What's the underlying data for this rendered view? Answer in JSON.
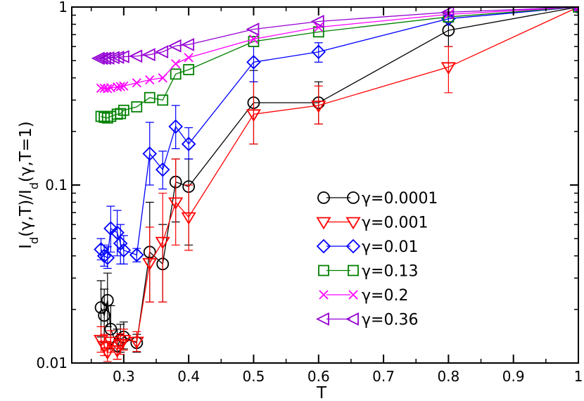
{
  "chart_data": {
    "type": "scatter",
    "title": "",
    "xlabel": "T",
    "ylabel": "I_d(γ,T)/I_d(γ,T=1)",
    "ylabel_parts": {
      "main": "I",
      "sub": "d",
      "mid": "(γ,T)/I",
      "sub2": "d",
      "tail": "(γ,T=1)"
    },
    "xlim": [
      0.22,
      1.0
    ],
    "ylim": [
      0.01,
      1
    ],
    "yscale": "log",
    "grid": false,
    "legend_position": "center-right",
    "xticks": [
      {
        "value": 0.3,
        "label": "0.3"
      },
      {
        "value": 0.4,
        "label": "0.4"
      },
      {
        "value": 0.5,
        "label": "0.5"
      },
      {
        "value": 0.6,
        "label": "0.6"
      },
      {
        "value": 0.7,
        "label": "0.7"
      },
      {
        "value": 0.8,
        "label": "0.8"
      },
      {
        "value": 0.9,
        "label": "0.9"
      },
      {
        "value": 1.0,
        "label": "1"
      }
    ],
    "yticks": [
      {
        "value": 0.01,
        "label": "0.01"
      },
      {
        "value": 0.1,
        "label": "0.1"
      },
      {
        "value": 1,
        "label": "1"
      }
    ],
    "series": [
      {
        "name": "γ=0.0001",
        "color": "#000000",
        "marker": "circle",
        "points": [
          {
            "x": 0.265,
            "y": 0.0205,
            "lo": 0.014,
            "hi": 0.029
          },
          {
            "x": 0.27,
            "y": 0.0185,
            "lo": 0.013,
            "hi": 0.026
          },
          {
            "x": 0.275,
            "y": 0.0225,
            "lo": 0.016,
            "hi": 0.032
          },
          {
            "x": 0.28,
            "y": 0.0155,
            "lo": 0.012,
            "hi": 0.021
          },
          {
            "x": 0.29,
            "y": 0.0125,
            "lo": 0.0105,
            "hi": 0.0155
          },
          {
            "x": 0.295,
            "y": 0.0135,
            "lo": 0.0115,
            "hi": 0.0165
          },
          {
            "x": 0.3,
            "y": 0.014,
            "lo": 0.012,
            "hi": 0.017
          },
          {
            "x": 0.32,
            "y": 0.013,
            "lo": 0.0115,
            "hi": 0.0145
          },
          {
            "x": 0.34,
            "y": 0.042,
            "lo": 0.022,
            "hi": 0.08
          },
          {
            "x": 0.36,
            "y": 0.036,
            "lo": 0.022,
            "hi": 0.06
          },
          {
            "x": 0.38,
            "y": 0.104,
            "lo": 0.062,
            "hi": 0.14
          },
          {
            "x": 0.4,
            "y": 0.098,
            "lo": 0.046,
            "hi": 0.14
          },
          {
            "x": 0.5,
            "y": 0.29,
            "lo": 0.17,
            "hi": 0.44
          },
          {
            "x": 0.6,
            "y": 0.29,
            "lo": 0.22,
            "hi": 0.38
          },
          {
            "x": 0.8,
            "y": 0.74,
            "lo": 0.6,
            "hi": 0.88
          },
          {
            "x": 1.0,
            "y": 1.0,
            "lo": 0.98,
            "hi": 1.02
          }
        ]
      },
      {
        "name": "γ=0.001",
        "color": "#ff0000",
        "marker": "triangle-down",
        "points": [
          {
            "x": 0.265,
            "y": 0.0135,
            "lo": 0.0115,
            "hi": 0.016
          },
          {
            "x": 0.27,
            "y": 0.0125,
            "lo": 0.011,
            "hi": 0.0145
          },
          {
            "x": 0.275,
            "y": 0.0115,
            "lo": 0.0102,
            "hi": 0.013
          },
          {
            "x": 0.28,
            "y": 0.0132,
            "lo": 0.0115,
            "hi": 0.0152
          },
          {
            "x": 0.29,
            "y": 0.0118,
            "lo": 0.0105,
            "hi": 0.0133
          },
          {
            "x": 0.295,
            "y": 0.0128,
            "lo": 0.0112,
            "hi": 0.0146
          },
          {
            "x": 0.3,
            "y": 0.0135,
            "lo": 0.0118,
            "hi": 0.0155
          },
          {
            "x": 0.32,
            "y": 0.0132,
            "lo": 0.0116,
            "hi": 0.015
          },
          {
            "x": 0.34,
            "y": 0.0365,
            "lo": 0.022,
            "hi": 0.058
          },
          {
            "x": 0.36,
            "y": 0.048,
            "lo": 0.022,
            "hi": 0.09
          },
          {
            "x": 0.38,
            "y": 0.08,
            "lo": 0.046,
            "hi": 0.14
          },
          {
            "x": 0.4,
            "y": 0.066,
            "lo": 0.043,
            "hi": 0.1
          },
          {
            "x": 0.5,
            "y": 0.25,
            "lo": 0.17,
            "hi": 0.38
          },
          {
            "x": 0.6,
            "y": 0.28,
            "lo": 0.22,
            "hi": 0.36
          },
          {
            "x": 0.8,
            "y": 0.46,
            "lo": 0.33,
            "hi": 0.6
          },
          {
            "x": 1.0,
            "y": 1.0,
            "lo": 0.98,
            "hi": 1.02
          }
        ]
      },
      {
        "name": "γ=0.01",
        "color": "#0000ff",
        "marker": "diamond",
        "points": [
          {
            "x": 0.265,
            "y": 0.0435,
            "lo": 0.038,
            "hi": 0.05
          },
          {
            "x": 0.27,
            "y": 0.04,
            "lo": 0.035,
            "hi": 0.046
          },
          {
            "x": 0.275,
            "y": 0.039,
            "lo": 0.034,
            "hi": 0.045
          },
          {
            "x": 0.28,
            "y": 0.057,
            "lo": 0.042,
            "hi": 0.076
          },
          {
            "x": 0.29,
            "y": 0.054,
            "lo": 0.04,
            "hi": 0.072
          },
          {
            "x": 0.295,
            "y": 0.047,
            "lo": 0.036,
            "hi": 0.06
          },
          {
            "x": 0.3,
            "y": 0.043,
            "lo": 0.036,
            "hi": 0.052
          },
          {
            "x": 0.32,
            "y": 0.0405,
            "lo": 0.037,
            "hi": 0.044
          },
          {
            "x": 0.34,
            "y": 0.15,
            "lo": 0.1,
            "hi": 0.225
          },
          {
            "x": 0.36,
            "y": 0.122,
            "lo": 0.095,
            "hi": 0.155
          },
          {
            "x": 0.38,
            "y": 0.213,
            "lo": 0.16,
            "hi": 0.28
          },
          {
            "x": 0.4,
            "y": 0.17,
            "lo": 0.14,
            "hi": 0.21
          },
          {
            "x": 0.5,
            "y": 0.49,
            "lo": 0.38,
            "hi": 0.6
          },
          {
            "x": 0.6,
            "y": 0.56,
            "lo": 0.49,
            "hi": 0.63
          },
          {
            "x": 0.8,
            "y": 0.86,
            "lo": 0.82,
            "hi": 0.9
          },
          {
            "x": 1.0,
            "y": 1.0,
            "lo": 0.98,
            "hi": 1.02
          }
        ]
      },
      {
        "name": "γ=0.13",
        "color": "#008000",
        "marker": "square",
        "points": [
          {
            "x": 0.265,
            "y": 0.243
          },
          {
            "x": 0.27,
            "y": 0.24
          },
          {
            "x": 0.275,
            "y": 0.238
          },
          {
            "x": 0.28,
            "y": 0.243
          },
          {
            "x": 0.29,
            "y": 0.25
          },
          {
            "x": 0.295,
            "y": 0.252
          },
          {
            "x": 0.3,
            "y": 0.263
          },
          {
            "x": 0.32,
            "y": 0.275
          },
          {
            "x": 0.34,
            "y": 0.31
          },
          {
            "x": 0.36,
            "y": 0.3
          },
          {
            "x": 0.38,
            "y": 0.42
          },
          {
            "x": 0.4,
            "y": 0.445
          },
          {
            "x": 0.5,
            "y": 0.64
          },
          {
            "x": 0.6,
            "y": 0.725
          },
          {
            "x": 0.8,
            "y": 0.88
          },
          {
            "x": 1.0,
            "y": 1.0
          }
        ]
      },
      {
        "name": "γ=0.2",
        "color": "#ff00ff",
        "marker": "x",
        "points": [
          {
            "x": 0.265,
            "y": 0.35
          },
          {
            "x": 0.27,
            "y": 0.35
          },
          {
            "x": 0.275,
            "y": 0.348
          },
          {
            "x": 0.28,
            "y": 0.352
          },
          {
            "x": 0.29,
            "y": 0.355
          },
          {
            "x": 0.295,
            "y": 0.357
          },
          {
            "x": 0.3,
            "y": 0.36
          },
          {
            "x": 0.32,
            "y": 0.375
          },
          {
            "x": 0.34,
            "y": 0.39
          },
          {
            "x": 0.36,
            "y": 0.4
          },
          {
            "x": 0.38,
            "y": 0.48
          },
          {
            "x": 0.4,
            "y": 0.52
          },
          {
            "x": 0.5,
            "y": 0.66
          },
          {
            "x": 0.6,
            "y": 0.77
          },
          {
            "x": 0.8,
            "y": 0.91
          },
          {
            "x": 1.0,
            "y": 1.0
          }
        ]
      },
      {
        "name": "γ=0.36",
        "color": "#9400d3",
        "marker": "triangle-left",
        "points": [
          {
            "x": 0.262,
            "y": 0.515
          },
          {
            "x": 0.267,
            "y": 0.515
          },
          {
            "x": 0.272,
            "y": 0.515
          },
          {
            "x": 0.277,
            "y": 0.517
          },
          {
            "x": 0.285,
            "y": 0.52
          },
          {
            "x": 0.292,
            "y": 0.522
          },
          {
            "x": 0.3,
            "y": 0.526
          },
          {
            "x": 0.32,
            "y": 0.53
          },
          {
            "x": 0.34,
            "y": 0.54
          },
          {
            "x": 0.36,
            "y": 0.56
          },
          {
            "x": 0.38,
            "y": 0.605
          },
          {
            "x": 0.4,
            "y": 0.615
          },
          {
            "x": 0.5,
            "y": 0.75
          },
          {
            "x": 0.6,
            "y": 0.83
          },
          {
            "x": 0.8,
            "y": 0.935
          },
          {
            "x": 1.0,
            "y": 1.0
          }
        ]
      }
    ]
  }
}
